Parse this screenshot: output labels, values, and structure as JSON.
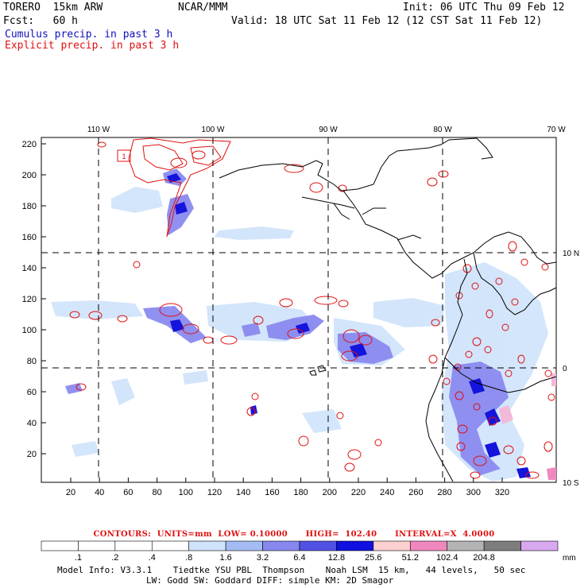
{
  "header": {
    "model": "TORERO  15km ARW",
    "org": "NCAR/MMM",
    "init": "Init: 06 UTC Thu 09 Feb 12",
    "fcst": "Fcst:   60 h",
    "valid": "Valid: 18 UTC Sat 11 Feb 12 (12 CST Sat 11 Feb 12)",
    "legend_cumulus": "Cumulus precip. in past 3 h",
    "legend_explicit": "Explicit precip. in past 3 h"
  },
  "map": {
    "top_lon_labels": [
      "110 W",
      "100 W",
      "90 W",
      "80 W",
      "70 W"
    ],
    "right_lat_labels": [
      "10 N",
      "0",
      "10 S"
    ],
    "left_ticks": [
      "220",
      "200",
      "180",
      "160",
      "140",
      "120",
      "100",
      "80",
      "60",
      "40",
      "20"
    ],
    "bottom_ticks": [
      "20",
      "40",
      "60",
      "80",
      "100",
      "120",
      "140",
      "160",
      "180",
      "200",
      "220",
      "240",
      "260",
      "280",
      "300",
      "320"
    ],
    "box_label": "1"
  },
  "contours_line": "CONTOURS:  UNITS=mm  LOW= 0.10000      HIGH=  102.40      INTERVAL=X  4.0000",
  "colorbar": {
    "labels": [
      ".1",
      ".2",
      ".4",
      ".8",
      "1.6",
      "3.2",
      "6.4",
      "12.8",
      "25.6",
      "51.2",
      "102.4",
      "204.8"
    ],
    "unit": "mm",
    "colors": [
      "#ffffff",
      "#ffffff",
      "#ffffff",
      "#ffffff",
      "#cfe3fb",
      "#a4bcf3",
      "#8787ef",
      "#5151e5",
      "#1010e0",
      "#fcd0d0",
      "#f088bf",
      "#b4b4b4",
      "#7d7d7d",
      "#d8a8f0"
    ]
  },
  "footer": {
    "line1": "Model Info: V3.3.1    Tiedtke YSU PBL  Thompson    Noah LSM  15 km,   44 levels,   50 sec",
    "line2": "LW: Godd SW: Goddard DIFF: simple KM: 2D Smagor"
  }
}
